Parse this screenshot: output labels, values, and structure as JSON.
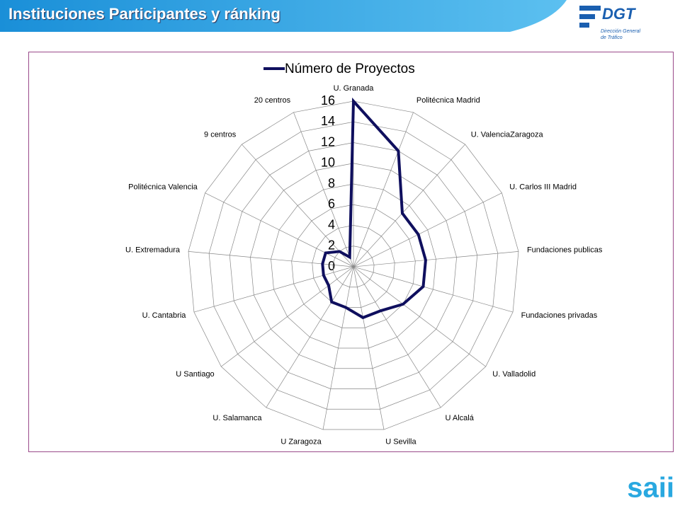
{
  "slide": {
    "title": "Instituciones Participantes y ránking",
    "logo_text": "DGT",
    "logo_subtitle": [
      "Dirección General",
      "de Tráfico"
    ],
    "footer_logo": "saii"
  },
  "chart_data": {
    "type": "radar",
    "series": [
      {
        "name": "Número de Proyectos",
        "color": "#0f0f5e",
        "values": [
          16,
          12,
          7,
          7,
          7,
          7,
          6,
          5,
          5,
          4,
          4,
          3,
          3,
          3,
          3,
          2,
          1
        ]
      }
    ],
    "categories": [
      "U. Granada",
      "Politécnica Madrid",
      "U. ValenciaZaragoza",
      "U. Carlos III Madrid",
      "Fundaciones publicas",
      "Fundaciones privadas",
      "U. Valladolid",
      "U Alcalá",
      "U Sevilla",
      "U Zaragoza",
      "U. Salamanca",
      "U Santiago",
      "U. Cantabria",
      "U. Extremadura",
      "Politécnica Valencia",
      "9 centros",
      "20 centros"
    ],
    "ylim": [
      0,
      16
    ],
    "yticks": [
      0,
      2,
      4,
      6,
      8,
      10,
      12,
      14,
      16
    ],
    "grid": true,
    "legend": "top"
  }
}
